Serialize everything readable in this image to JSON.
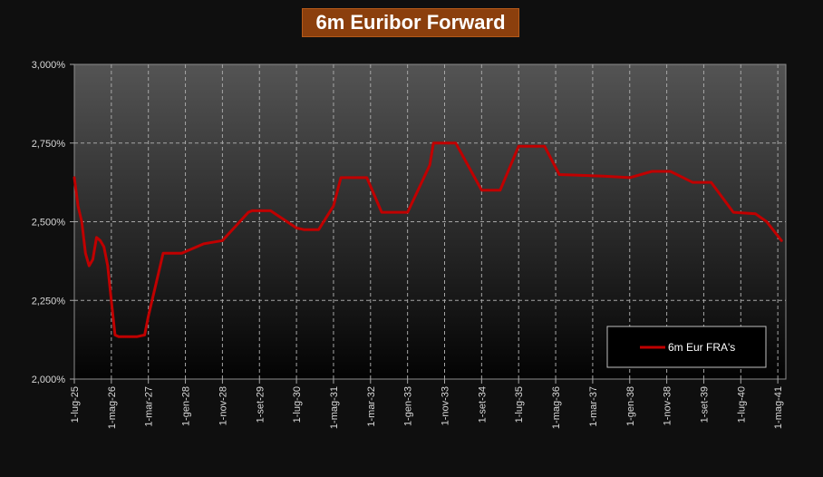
{
  "chart_data": {
    "type": "line",
    "title": "6m Euribor Forward",
    "xlabel": "",
    "ylabel": "",
    "ylim": [
      2.0,
      3.0
    ],
    "y_ticks": [
      "2,000%",
      "2,250%",
      "2,500%",
      "2,750%",
      "3,000%"
    ],
    "x_ticks": [
      "1-lug-25",
      "1-mag-26",
      "1-mar-27",
      "1-gen-28",
      "1-nov-28",
      "1-set-29",
      "1-lug-30",
      "1-mag-31",
      "1-mar-32",
      "1-gen-33",
      "1-nov-33",
      "1-set-34",
      "1-lug-35",
      "1-mag-36",
      "1-mar-37",
      "1-gen-38",
      "1-nov-38",
      "1-set-39",
      "1-lug-40",
      "1-mag-41"
    ],
    "grid": true,
    "legend_position": "bottom-right",
    "series": [
      {
        "name": "6m Eur FRA's",
        "color": "#c00000",
        "points": [
          [
            "1-lug-25",
            2.64
          ],
          [
            "1-ago-25",
            2.55
          ],
          [
            "1-set-25",
            2.5
          ],
          [
            "1-ott-25",
            2.4
          ],
          [
            "1-nov-25",
            2.36
          ],
          [
            "1-dic-25",
            2.38
          ],
          [
            "1-gen-26",
            2.45
          ],
          [
            "1-feb-26",
            2.44
          ],
          [
            "1-mar-26",
            2.42
          ],
          [
            "1-apr-26",
            2.36
          ],
          [
            "1-mag-26",
            2.25
          ],
          [
            "1-giu-26",
            2.14
          ],
          [
            "1-lug-26",
            2.135
          ],
          [
            "1-dic-26",
            2.135
          ],
          [
            "1-feb-27",
            2.14
          ],
          [
            "1-mar-27",
            2.2
          ],
          [
            "1-mag-27",
            2.3
          ],
          [
            "1-lug-27",
            2.4
          ],
          [
            "1-dic-27",
            2.4
          ],
          [
            "1-feb-28",
            2.41
          ],
          [
            "1-giu-28",
            2.43
          ],
          [
            "1-nov-28",
            2.44
          ],
          [
            "1-giu-29",
            2.53
          ],
          [
            "1-lug-29",
            2.535
          ],
          [
            "1-dic-29",
            2.535
          ],
          [
            "1-lug-30",
            2.48
          ],
          [
            "1-set-30",
            2.475
          ],
          [
            "1-gen-31",
            2.475
          ],
          [
            "1-mag-31",
            2.55
          ],
          [
            "1-lug-31",
            2.64
          ],
          [
            "1-feb-32",
            2.64
          ],
          [
            "1-giu-32",
            2.53
          ],
          [
            "1-gen-33",
            2.53
          ],
          [
            "1-lug-33",
            2.68
          ],
          [
            "1-ago-33",
            2.75
          ],
          [
            "1-feb-34",
            2.75
          ],
          [
            "1-set-34",
            2.6
          ],
          [
            "1-feb-35",
            2.6
          ],
          [
            "1-lug-35",
            2.74
          ],
          [
            "1-feb-36",
            2.74
          ],
          [
            "1-giu-36",
            2.65
          ],
          [
            "1-giu-37",
            2.645
          ],
          [
            "1-gen-38",
            2.64
          ],
          [
            "1-lug-38",
            2.66
          ],
          [
            "1-dic-38",
            2.66
          ],
          [
            "1-giu-39",
            2.625
          ],
          [
            "1-nov-39",
            2.625
          ],
          [
            "1-mag-40",
            2.53
          ],
          [
            "1-nov-40",
            2.525
          ],
          [
            "1-feb-41",
            2.5
          ],
          [
            "1-giu-41",
            2.44
          ]
        ]
      }
    ]
  }
}
